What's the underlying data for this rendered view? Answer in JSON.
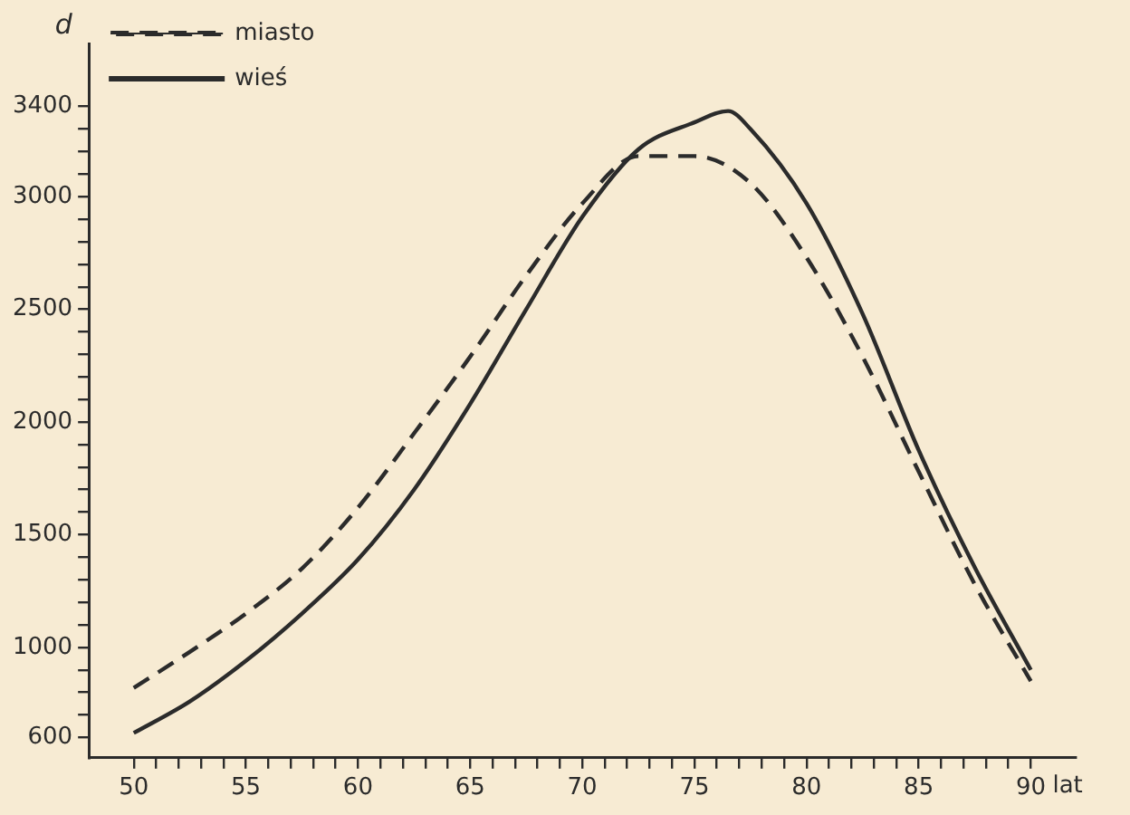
{
  "chart_data": {
    "type": "line",
    "xlabel": "lat",
    "ylabel": "d",
    "legend": "top left",
    "grid": false,
    "marker": "none",
    "xlim": [
      48,
      92
    ],
    "ylim": [
      510,
      3680
    ],
    "xticks": [
      50,
      {
        "value": 51,
        "label": null
      },
      {
        "value": 52,
        "label": null
      },
      {
        "value": 53,
        "label": null
      },
      {
        "value": 54,
        "label": null
      },
      55,
      {
        "value": 56,
        "label": null
      },
      {
        "value": 57,
        "label": null
      },
      {
        "value": 58,
        "label": null
      },
      {
        "value": 59,
        "label": null
      },
      60,
      {
        "value": 61,
        "label": null
      },
      {
        "value": 62,
        "label": null
      },
      {
        "value": 63,
        "label": null
      },
      {
        "value": 64,
        "label": null
      },
      65,
      {
        "value": 66,
        "label": null
      },
      {
        "value": 67,
        "label": null
      },
      {
        "value": 68,
        "label": null
      },
      {
        "value": 69,
        "label": null
      },
      70,
      {
        "value": 71,
        "label": null
      },
      {
        "value": 72,
        "label": null
      },
      {
        "value": 73,
        "label": null
      },
      {
        "value": 74,
        "label": null
      },
      75,
      {
        "value": 76,
        "label": null
      },
      {
        "value": 77,
        "label": null
      },
      {
        "value": 78,
        "label": null
      },
      {
        "value": 79,
        "label": null
      },
      80,
      {
        "value": 81,
        "label": null
      },
      {
        "value": 82,
        "label": null
      },
      {
        "value": 83,
        "label": null
      },
      {
        "value": 84,
        "label": null
      },
      85,
      {
        "value": 86,
        "label": null
      },
      {
        "value": 87,
        "label": null
      },
      {
        "value": 88,
        "label": null
      },
      {
        "value": 89,
        "label": null
      },
      90
    ],
    "yticks": [
      600,
      {
        "value": 700,
        "label": null
      },
      {
        "value": 800,
        "label": null
      },
      {
        "value": 900,
        "label": null
      },
      1000,
      {
        "value": 1100,
        "label": null
      },
      {
        "value": 1200,
        "label": null
      },
      {
        "value": 1300,
        "label": null
      },
      {
        "value": 1400,
        "label": null
      },
      1500,
      {
        "value": 1600,
        "label": null
      },
      {
        "value": 1700,
        "label": null
      },
      {
        "value": 1800,
        "label": null
      },
      {
        "value": 1900,
        "label": null
      },
      2000,
      {
        "value": 2100,
        "label": null
      },
      {
        "value": 2200,
        "label": null
      },
      {
        "value": 2300,
        "label": null
      },
      {
        "value": 2400,
        "label": null
      },
      2500,
      {
        "value": 2600,
        "label": null
      },
      {
        "value": 2700,
        "label": null
      },
      {
        "value": 2800,
        "label": null
      },
      {
        "value": 2900,
        "label": null
      },
      3000,
      {
        "value": 3100,
        "label": null
      },
      {
        "value": 3200,
        "label": null
      },
      {
        "value": 3300,
        "label": null
      },
      3400
    ],
    "x": [
      50,
      52.5,
      55,
      57.5,
      60,
      62.5,
      65,
      67.5,
      70,
      72.5,
      75,
      76.5,
      77.5,
      80,
      82.5,
      85,
      87.5,
      90
    ],
    "series": [
      {
        "name": "miasto",
        "color": "#2b2b2b",
        "line_style": "dashed",
        "x": [
          50,
          52.5,
          55,
          57.5,
          60,
          62.5,
          65,
          67.5,
          70,
          72.5,
          75,
          77.5,
          80,
          82.5,
          85,
          87.5,
          90
        ],
        "values": [
          820,
          980,
          1150,
          1350,
          1620,
          1950,
          2290,
          2650,
          2970,
          3180,
          3180,
          3060,
          2730,
          2290,
          1780,
          1280,
          850
        ]
      },
      {
        "name": "wieś",
        "color": "#2b2b2b",
        "line_style": "solid",
        "values": [
          620,
          760,
          940,
          1150,
          1390,
          1700,
          2080,
          2500,
          2910,
          3210,
          3330,
          3380,
          3300,
          2970,
          2480,
          1875,
          1355,
          900
        ]
      }
    ]
  }
}
